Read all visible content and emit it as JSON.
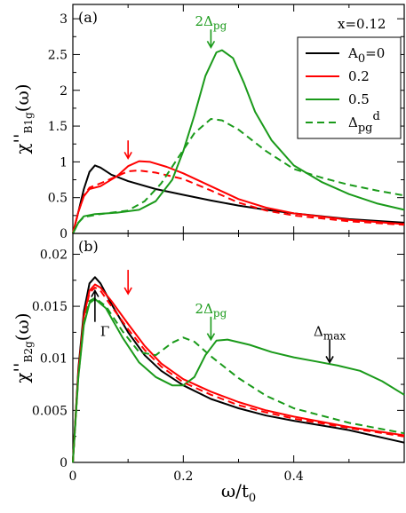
{
  "chart_data": [
    {
      "type": "line",
      "panel_label": "(a)",
      "annotation": "x=0.12",
      "xlim": [
        0,
        0.6
      ],
      "ylim": [
        0,
        3.2
      ],
      "ylabel": "χ''B1g(ω)",
      "yticks": [
        "0",
        "0.5",
        "1",
        "1.5",
        "2",
        "2.5",
        "3"
      ],
      "ytick_values": [
        0,
        0.5,
        1,
        1.5,
        2,
        2.5,
        3
      ],
      "legend": {
        "position": "top-right",
        "entries": [
          {
            "label": "A0=0",
            "color": "#000000",
            "dashed": false
          },
          {
            "label": "0.2",
            "color": "#ff0000",
            "dashed": false
          },
          {
            "label": "0.5",
            "color": "#1a9a1a",
            "dashed": false
          },
          {
            "label": "Δpgd",
            "color": "#1a9a1a",
            "dashed": true
          }
        ]
      },
      "series": [
        {
          "name": "A0=0",
          "color": "#000000",
          "dashed": false,
          "points": [
            [
              0,
              0
            ],
            [
              0.01,
              0.3
            ],
            [
              0.02,
              0.62
            ],
            [
              0.03,
              0.86
            ],
            [
              0.04,
              0.95
            ],
            [
              0.05,
              0.92
            ],
            [
              0.07,
              0.82
            ],
            [
              0.1,
              0.73
            ],
            [
              0.15,
              0.62
            ],
            [
              0.2,
              0.54
            ],
            [
              0.25,
              0.46
            ],
            [
              0.3,
              0.39
            ],
            [
              0.35,
              0.33
            ],
            [
              0.4,
              0.28
            ],
            [
              0.5,
              0.2
            ],
            [
              0.6,
              0.15
            ]
          ]
        },
        {
          "name": "0.2",
          "color": "#ff0000",
          "dashed": false,
          "points": [
            [
              0,
              0
            ],
            [
              0.01,
              0.3
            ],
            [
              0.02,
              0.52
            ],
            [
              0.03,
              0.62
            ],
            [
              0.05,
              0.66
            ],
            [
              0.08,
              0.8
            ],
            [
              0.1,
              0.94
            ],
            [
              0.12,
              1.01
            ],
            [
              0.14,
              1.0
            ],
            [
              0.17,
              0.93
            ],
            [
              0.2,
              0.84
            ],
            [
              0.25,
              0.66
            ],
            [
              0.3,
              0.48
            ],
            [
              0.35,
              0.36
            ],
            [
              0.4,
              0.28
            ],
            [
              0.5,
              0.19
            ],
            [
              0.6,
              0.13
            ]
          ]
        },
        {
          "name": "0.5",
          "color": "#1a9a1a",
          "dashed": false,
          "points": [
            [
              0,
              0
            ],
            [
              0.01,
              0.15
            ],
            [
              0.02,
              0.24
            ],
            [
              0.04,
              0.27
            ],
            [
              0.08,
              0.29
            ],
            [
              0.12,
              0.33
            ],
            [
              0.15,
              0.45
            ],
            [
              0.18,
              0.75
            ],
            [
              0.2,
              1.15
            ],
            [
              0.22,
              1.65
            ],
            [
              0.24,
              2.2
            ],
            [
              0.26,
              2.53
            ],
            [
              0.27,
              2.56
            ],
            [
              0.29,
              2.45
            ],
            [
              0.31,
              2.1
            ],
            [
              0.33,
              1.7
            ],
            [
              0.36,
              1.3
            ],
            [
              0.4,
              0.95
            ],
            [
              0.45,
              0.72
            ],
            [
              0.5,
              0.55
            ],
            [
              0.55,
              0.42
            ],
            [
              0.6,
              0.33
            ]
          ]
        },
        {
          "name": "Δpgd 0.2",
          "color": "#ff0000",
          "dashed": true,
          "points": [
            [
              0,
              0
            ],
            [
              0.01,
              0.3
            ],
            [
              0.02,
              0.53
            ],
            [
              0.03,
              0.64
            ],
            [
              0.05,
              0.7
            ],
            [
              0.08,
              0.8
            ],
            [
              0.1,
              0.87
            ],
            [
              0.12,
              0.88
            ],
            [
              0.15,
              0.85
            ],
            [
              0.2,
              0.76
            ],
            [
              0.25,
              0.6
            ],
            [
              0.3,
              0.43
            ],
            [
              0.35,
              0.32
            ],
            [
              0.4,
              0.25
            ],
            [
              0.5,
              0.17
            ],
            [
              0.6,
              0.12
            ]
          ]
        },
        {
          "name": "Δpgd 0.5",
          "color": "#1a9a1a",
          "dashed": true,
          "points": [
            [
              0,
              0
            ],
            [
              0.01,
              0.15
            ],
            [
              0.02,
              0.23
            ],
            [
              0.05,
              0.27
            ],
            [
              0.1,
              0.32
            ],
            [
              0.13,
              0.45
            ],
            [
              0.16,
              0.7
            ],
            [
              0.19,
              1.05
            ],
            [
              0.22,
              1.4
            ],
            [
              0.25,
              1.6
            ],
            [
              0.27,
              1.58
            ],
            [
              0.3,
              1.45
            ],
            [
              0.35,
              1.15
            ],
            [
              0.4,
              0.9
            ],
            [
              0.45,
              0.78
            ],
            [
              0.5,
              0.68
            ],
            [
              0.55,
              0.6
            ],
            [
              0.6,
              0.53
            ]
          ]
        }
      ],
      "markers": [
        {
          "label": "",
          "x": 0.1,
          "y_tip": 1.05,
          "y_tail": 1.3,
          "color": "#ff0000"
        },
        {
          "label": "2Δpg",
          "x": 0.25,
          "y_tip": 2.6,
          "y_tail": 2.85,
          "color": "#1a9a1a"
        }
      ]
    },
    {
      "type": "line",
      "panel_label": "(b)",
      "xlim": [
        0,
        0.6
      ],
      "ylim": [
        0,
        0.022
      ],
      "xlabel": "ω/t0",
      "ylabel": "χ''B2g(ω)",
      "xticks": [
        "0",
        "0.2",
        "0.4"
      ],
      "xtick_values": [
        0,
        0.2,
        0.4
      ],
      "yticks": [
        "0",
        "0.005",
        "0.01",
        "0.015",
        "0.02"
      ],
      "ytick_values": [
        0,
        0.005,
        0.01,
        0.015,
        0.02
      ],
      "series": [
        {
          "name": "A0=0",
          "color": "#000000",
          "dashed": false,
          "points": [
            [
              0,
              0
            ],
            [
              0.01,
              0.009
            ],
            [
              0.02,
              0.0145
            ],
            [
              0.03,
              0.0172
            ],
            [
              0.04,
              0.0178
            ],
            [
              0.05,
              0.0172
            ],
            [
              0.07,
              0.0152
            ],
            [
              0.1,
              0.0125
            ],
            [
              0.13,
              0.0103
            ],
            [
              0.16,
              0.0088
            ],
            [
              0.2,
              0.0074
            ],
            [
              0.25,
              0.0061
            ],
            [
              0.3,
              0.0052
            ],
            [
              0.35,
              0.0045
            ],
            [
              0.4,
              0.004
            ],
            [
              0.5,
              0.0031
            ],
            [
              0.6,
              0.0019
            ]
          ]
        },
        {
          "name": "0.2",
          "color": "#ff0000",
          "dashed": false,
          "points": [
            [
              0,
              0
            ],
            [
              0.01,
              0.0087
            ],
            [
              0.02,
              0.014
            ],
            [
              0.03,
              0.0165
            ],
            [
              0.04,
              0.0171
            ],
            [
              0.05,
              0.0168
            ],
            [
              0.07,
              0.0155
            ],
            [
              0.1,
              0.0133
            ],
            [
              0.13,
              0.0112
            ],
            [
              0.16,
              0.0095
            ],
            [
              0.2,
              0.008
            ],
            [
              0.25,
              0.0068
            ],
            [
              0.3,
              0.0058
            ],
            [
              0.35,
              0.005
            ],
            [
              0.4,
              0.0044
            ],
            [
              0.5,
              0.0034
            ],
            [
              0.6,
              0.0026
            ]
          ]
        },
        {
          "name": "0.5",
          "color": "#1a9a1a",
          "dashed": false,
          "points": [
            [
              0,
              0
            ],
            [
              0.01,
              0.0082
            ],
            [
              0.02,
              0.0132
            ],
            [
              0.03,
              0.0153
            ],
            [
              0.04,
              0.0157
            ],
            [
              0.06,
              0.0148
            ],
            [
              0.09,
              0.012
            ],
            [
              0.12,
              0.0096
            ],
            [
              0.15,
              0.0082
            ],
            [
              0.18,
              0.0074
            ],
            [
              0.2,
              0.0074
            ],
            [
              0.22,
              0.0082
            ],
            [
              0.24,
              0.0103
            ],
            [
              0.26,
              0.0117
            ],
            [
              0.28,
              0.0118
            ],
            [
              0.32,
              0.0113
            ],
            [
              0.36,
              0.0106
            ],
            [
              0.4,
              0.0101
            ],
            [
              0.44,
              0.0097
            ],
            [
              0.48,
              0.0093
            ],
            [
              0.52,
              0.0088
            ],
            [
              0.56,
              0.0078
            ],
            [
              0.6,
              0.0065
            ]
          ]
        },
        {
          "name": "Δpgd 0.2",
          "color": "#ff0000",
          "dashed": true,
          "points": [
            [
              0,
              0
            ],
            [
              0.01,
              0.0085
            ],
            [
              0.02,
              0.0138
            ],
            [
              0.03,
              0.0163
            ],
            [
              0.04,
              0.0168
            ],
            [
              0.05,
              0.0165
            ],
            [
              0.07,
              0.015
            ],
            [
              0.1,
              0.0128
            ],
            [
              0.13,
              0.0108
            ],
            [
              0.16,
              0.0092
            ],
            [
              0.2,
              0.0077
            ],
            [
              0.25,
              0.0065
            ],
            [
              0.3,
              0.0055
            ],
            [
              0.35,
              0.0048
            ],
            [
              0.4,
              0.0042
            ],
            [
              0.5,
              0.0033
            ],
            [
              0.6,
              0.0025
            ]
          ]
        },
        {
          "name": "Δpgd 0.5",
          "color": "#1a9a1a",
          "dashed": true,
          "points": [
            [
              0,
              0
            ],
            [
              0.01,
              0.0083
            ],
            [
              0.02,
              0.0134
            ],
            [
              0.03,
              0.0155
            ],
            [
              0.04,
              0.0158
            ],
            [
              0.06,
              0.015
            ],
            [
              0.09,
              0.0126
            ],
            [
              0.12,
              0.0106
            ],
            [
              0.15,
              0.0103
            ],
            [
              0.18,
              0.0115
            ],
            [
              0.2,
              0.012
            ],
            [
              0.22,
              0.0116
            ],
            [
              0.25,
              0.0102
            ],
            [
              0.3,
              0.0081
            ],
            [
              0.35,
              0.0064
            ],
            [
              0.4,
              0.0052
            ],
            [
              0.5,
              0.0038
            ],
            [
              0.6,
              0.0028
            ]
          ]
        }
      ],
      "markers": [
        {
          "label": "",
          "x": 0.1,
          "y_tip": 0.0162,
          "y_tail": 0.0185,
          "color": "#ff0000"
        },
        {
          "label": "2Δpg",
          "x": 0.25,
          "y_tip": 0.0118,
          "y_tail": 0.014,
          "color": "#1a9a1a"
        },
        {
          "label": "Δmax",
          "x": 0.465,
          "y_tip": 0.0096,
          "y_tail": 0.0118,
          "color": "#000000"
        },
        {
          "label": "Γ",
          "x": 0.04,
          "y_tip": 0.0165,
          "y_tail": 0.0135,
          "color": "#000000"
        }
      ]
    }
  ]
}
